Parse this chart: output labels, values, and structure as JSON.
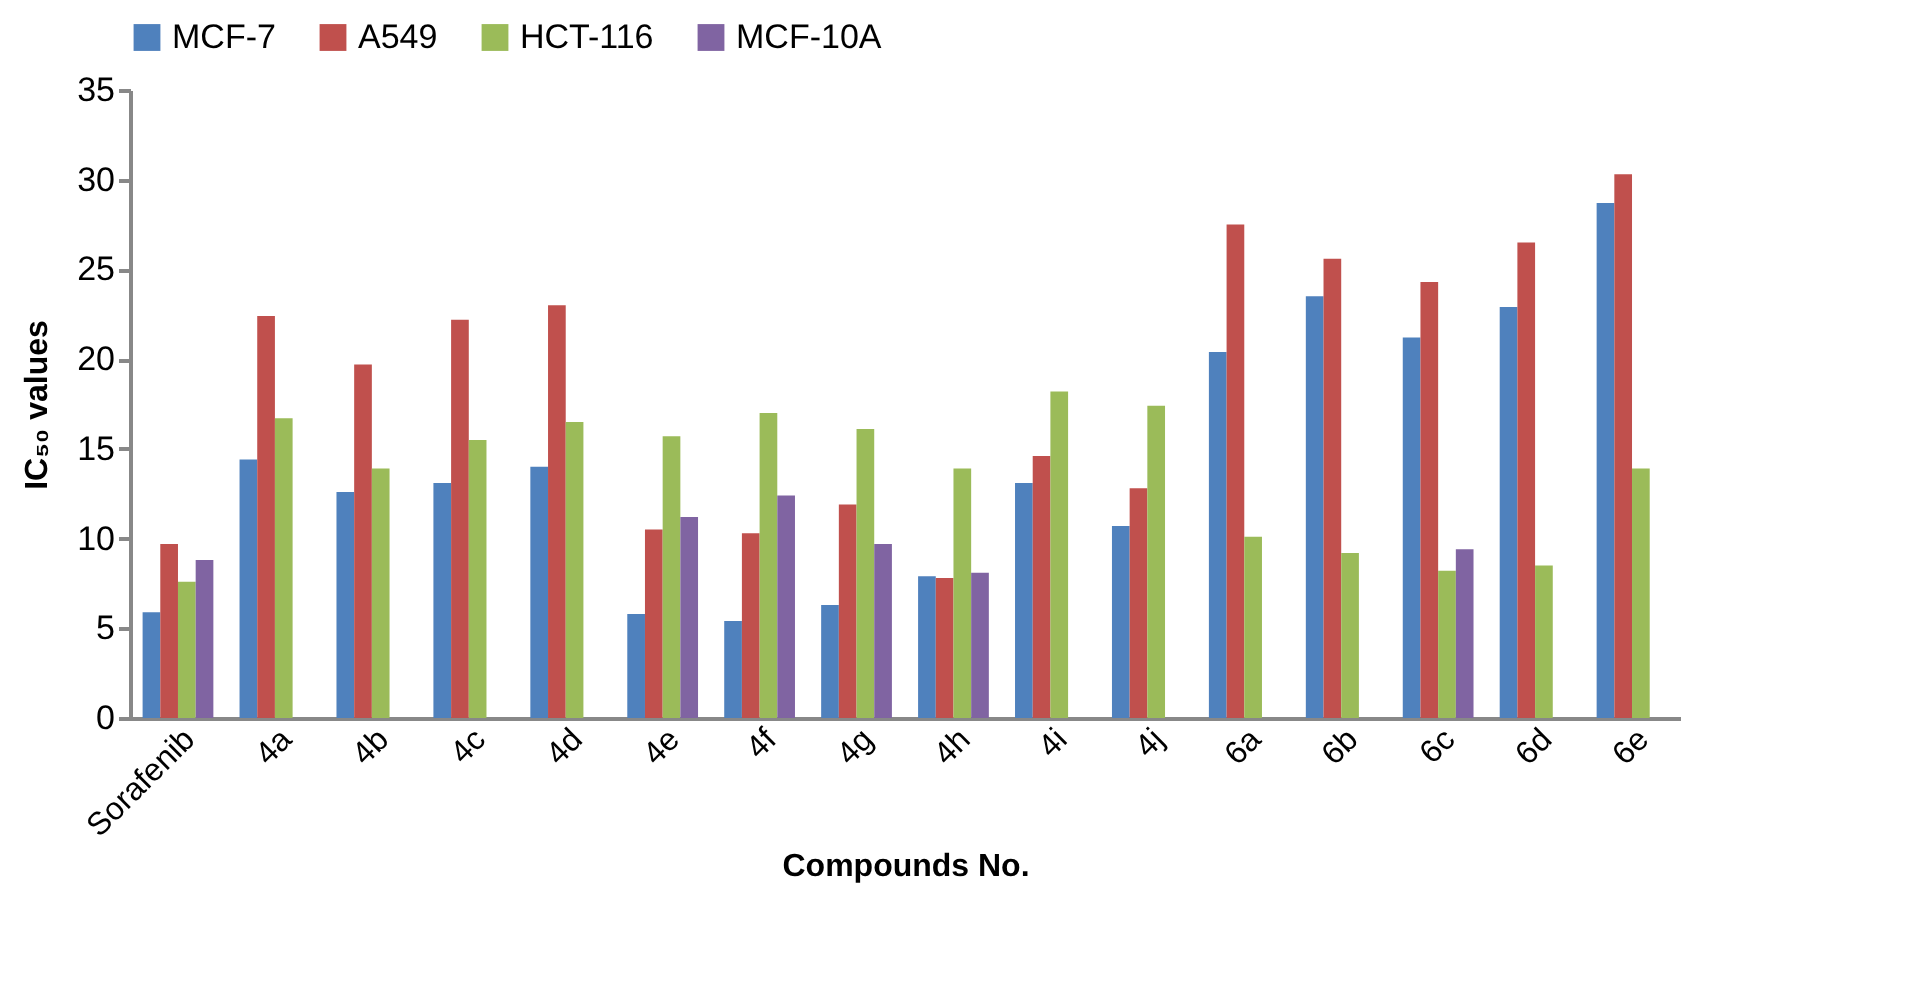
{
  "chart_data": {
    "type": "bar",
    "xlabel": "Compounds No.",
    "ylabel": "IC₅₀ values",
    "categories": [
      "Sorafenib",
      "4a",
      "4b",
      "4c",
      "4d",
      "4e",
      "4f",
      "4g",
      "4h",
      "4i",
      "4j",
      "6a",
      "6b",
      "6c",
      "6d",
      "6e"
    ],
    "series": [
      {
        "name": "MCF-7",
        "color": "#4f81bd",
        "values": [
          5.9,
          14.4,
          12.6,
          13.1,
          14.0,
          5.8,
          5.4,
          6.3,
          7.9,
          13.1,
          10.7,
          20.4,
          23.5,
          21.2,
          22.9,
          28.7
        ]
      },
      {
        "name": "A549",
        "color": "#c0504d",
        "values": [
          9.7,
          22.4,
          19.7,
          22.2,
          23.0,
          10.5,
          10.3,
          11.9,
          7.8,
          14.6,
          12.8,
          27.5,
          25.6,
          24.3,
          26.5,
          30.3
        ]
      },
      {
        "name": "HCT-116",
        "color": "#9bbb59",
        "values": [
          7.6,
          16.7,
          13.9,
          15.5,
          16.5,
          15.7,
          17.0,
          16.1,
          13.9,
          18.2,
          17.4,
          10.1,
          9.2,
          8.2,
          8.5,
          13.9
        ]
      },
      {
        "name": "MCF-10A",
        "color": "#8064a2",
        "values": [
          8.8,
          null,
          null,
          null,
          null,
          11.2,
          12.4,
          9.7,
          8.1,
          null,
          null,
          null,
          null,
          9.4,
          null,
          null
        ]
      }
    ],
    "ylim": [
      0,
      35
    ],
    "yticks": [
      0,
      5,
      10,
      15,
      20,
      25,
      30,
      35
    ],
    "grid": false,
    "legend": "top"
  }
}
